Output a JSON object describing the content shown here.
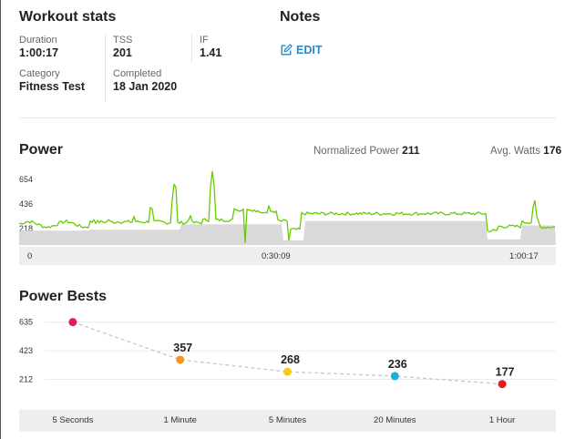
{
  "workout_stats": {
    "title": "Workout stats",
    "duration": {
      "label": "Duration",
      "value": "1:00:17"
    },
    "tss": {
      "label": "TSS",
      "value": "201"
    },
    "if": {
      "label": "IF",
      "value": "1.41"
    },
    "category": {
      "label": "Category",
      "value": "Fitness Test"
    },
    "completed": {
      "label": "Completed",
      "value": "18 Jan 2020"
    }
  },
  "notes": {
    "title": "Notes",
    "edit_label": "EDIT",
    "edit_icon": "edit-pencil-icon"
  },
  "power": {
    "title": "Power",
    "normalized_label": "Normalized Power",
    "normalized_value": "211",
    "avg_label": "Avg. Watts",
    "avg_value": "176",
    "y_ticks": [
      "654",
      "436",
      "218"
    ],
    "x_ticks": [
      "0",
      "0:30:09",
      "1:00:17"
    ],
    "line_color": "#66cc00",
    "fill_color": "#d9d9d9"
  },
  "power_bests": {
    "title": "Power Bests",
    "y_ticks": [
      "635",
      "423",
      "212"
    ]
  },
  "chart_data": {
    "type": "line",
    "categories": [
      "5 Seconds",
      "1 Minute",
      "5 Minutes",
      "20 Minutes",
      "1 Hour"
    ],
    "values": [
      635,
      357,
      268,
      236,
      177
    ],
    "value_labels": [
      "635",
      "357",
      "268",
      "236",
      "177"
    ],
    "point_colors": [
      "#e8195e",
      "#f5961e",
      "#f5cc14",
      "#1ab0dc",
      "#e02020"
    ],
    "line_color": "#c8c8c8",
    "ylim": [
      0,
      700
    ],
    "grid": true
  }
}
